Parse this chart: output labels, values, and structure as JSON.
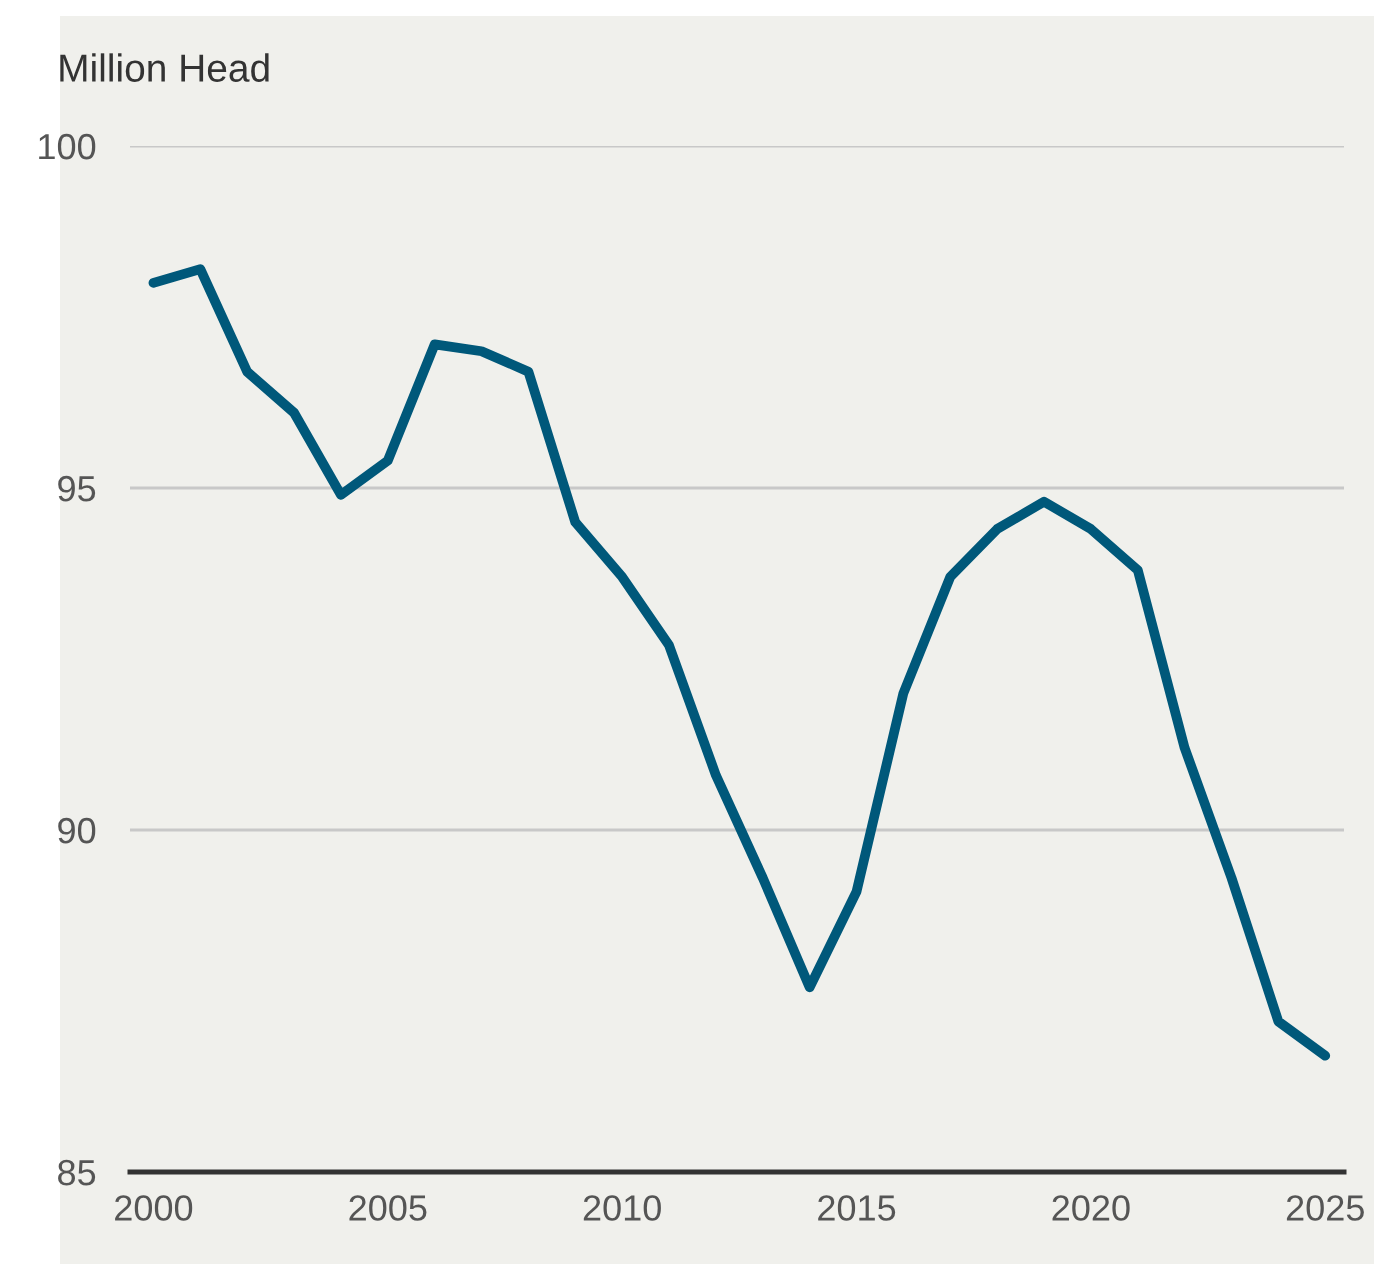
{
  "chart_data": {
    "type": "line",
    "ylabel": "Million Head",
    "x": [
      2000,
      2001,
      2002,
      2003,
      2004,
      2005,
      2006,
      2007,
      2008,
      2009,
      2010,
      2011,
      2012,
      2013,
      2014,
      2015,
      2016,
      2017,
      2018,
      2019,
      2020,
      2021,
      2022,
      2023,
      2024,
      2025
    ],
    "series": [
      {
        "color": "#00587a",
        "values": [
          98.0,
          98.2,
          96.7,
          96.1,
          94.9,
          95.4,
          97.1,
          97.0,
          96.7,
          94.5,
          93.7,
          92.7,
          90.8,
          89.3,
          87.7,
          89.1,
          92.0,
          93.7,
          94.4,
          94.8,
          94.4,
          93.8,
          91.2,
          89.3,
          87.2,
          86.7
        ]
      }
    ],
    "xlim": [
      1999.5,
      2025.4
    ],
    "xticks": [
      2000,
      2005,
      2010,
      2015,
      2020,
      2025
    ],
    "ylim": [
      85,
      100
    ],
    "yticks": [
      85,
      90,
      95,
      100
    ],
    "grid": "y",
    "legend": false,
    "marker": "none",
    "line_style": "solid"
  }
}
